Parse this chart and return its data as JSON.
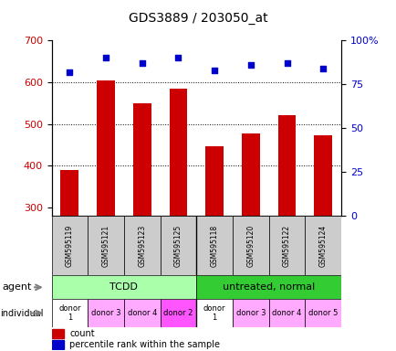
{
  "title": "GDS3889 / 203050_at",
  "samples": [
    "GSM595119",
    "GSM595121",
    "GSM595123",
    "GSM595125",
    "GSM595118",
    "GSM595120",
    "GSM595122",
    "GSM595124"
  ],
  "counts": [
    390,
    605,
    550,
    585,
    447,
    478,
    520,
    472
  ],
  "percentile_ranks": [
    82,
    90,
    87,
    90,
    83,
    86,
    87,
    84
  ],
  "ylim_left": [
    280,
    700
  ],
  "ylim_right": [
    0,
    100
  ],
  "yticks_left": [
    300,
    400,
    500,
    600,
    700
  ],
  "yticks_right": [
    0,
    25,
    50,
    75,
    100
  ],
  "right_tick_labels": [
    "0",
    "25",
    "50",
    "75",
    "100%"
  ],
  "bar_color": "#cc0000",
  "dot_color": "#0000cc",
  "agent_groups": [
    {
      "label": "TCDD",
      "start": 0,
      "end": 4,
      "color": "#aaffaa"
    },
    {
      "label": "untreated, normal",
      "start": 4,
      "end": 8,
      "color": "#33cc33"
    }
  ],
  "individual_labels": [
    "donor\n1",
    "donor 3",
    "donor 4",
    "donor 2",
    "donor\n1",
    "donor 3",
    "donor 4",
    "donor 5"
  ],
  "individual_colors": [
    "#ffffff",
    "#ffaaff",
    "#ffaaff",
    "#ff55ff",
    "#ffffff",
    "#ffaaff",
    "#ffaaff",
    "#ffaaff"
  ],
  "sample_bg_color": "#cccccc",
  "legend_count_color": "#cc0000",
  "legend_dot_color": "#0000cc"
}
